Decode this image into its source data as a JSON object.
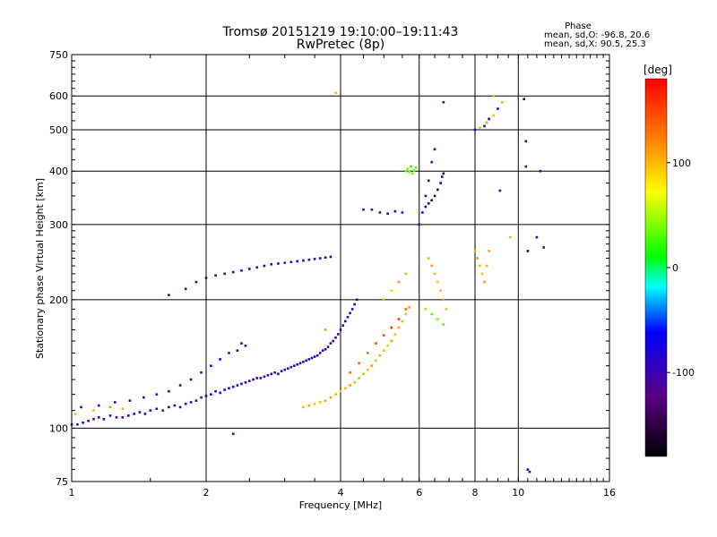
{
  "chart_data": {
    "type": "scatter",
    "title": "Tromsø 20151219 19:10:00–19:11:43",
    "subtitle": "RwPretec (8p)",
    "xlabel": "Frequency [MHz]",
    "ylabel": "Stationary phase Virtual Height [km]",
    "xscale": "log",
    "yscale": "log",
    "xlim": [
      1,
      16
    ],
    "ylim": [
      75,
      750
    ],
    "x_ticks": [
      1,
      2,
      4,
      6,
      8,
      10,
      16
    ],
    "y_ticks": [
      75,
      100,
      200,
      300,
      400,
      500,
      600,
      750
    ],
    "x_grid": [
      2,
      4,
      6,
      8,
      10
    ],
    "y_grid": [
      100,
      200,
      300,
      400,
      500,
      600
    ],
    "grid": true,
    "stats": {
      "heading": "Phase",
      "line_o": "mean, sd,O: -96.8, 20.6",
      "line_x": "mean, sd,X:  90.5, 25.3"
    },
    "colorbar": {
      "label": "[deg]",
      "ticks": [
        100,
        0,
        -100
      ],
      "range": [
        -180,
        180
      ],
      "placement": "right"
    },
    "series": [
      {
        "points": [
          [
            1.0,
            102,
            -100
          ],
          [
            1.03,
            102,
            -110
          ],
          [
            1.06,
            103,
            -95
          ],
          [
            1.09,
            104,
            -100
          ],
          [
            1.12,
            105,
            -120
          ],
          [
            1.15,
            106,
            -90
          ],
          [
            1.18,
            105,
            -100
          ],
          [
            1.22,
            107,
            -110
          ],
          [
            1.26,
            106,
            -95
          ],
          [
            1.3,
            106,
            -105
          ],
          [
            1.34,
            107,
            -100
          ],
          [
            1.38,
            108,
            -115
          ],
          [
            1.42,
            109,
            -90
          ],
          [
            1.46,
            108,
            -100
          ],
          [
            1.5,
            110,
            -105
          ],
          [
            1.55,
            111,
            -100
          ],
          [
            1.6,
            110,
            -120
          ],
          [
            1.65,
            112,
            -95
          ],
          [
            1.7,
            113,
            -100
          ],
          [
            1.75,
            112,
            -110
          ],
          [
            1.8,
            114,
            -100
          ],
          [
            1.85,
            115,
            -90
          ],
          [
            1.9,
            116,
            -100
          ],
          [
            1.95,
            118,
            -110
          ],
          [
            2.0,
            119,
            -100
          ],
          [
            2.05,
            120,
            -95
          ],
          [
            2.1,
            122,
            -105
          ],
          [
            2.15,
            121,
            -100
          ],
          [
            2.2,
            123,
            -110
          ],
          [
            2.25,
            124,
            -100
          ],
          [
            2.3,
            125,
            -95
          ],
          [
            2.35,
            126,
            -100
          ],
          [
            2.4,
            127,
            -105
          ],
          [
            2.45,
            128,
            -100
          ],
          [
            2.5,
            129,
            -115
          ],
          [
            2.55,
            130,
            -100
          ],
          [
            2.6,
            131,
            -95
          ],
          [
            2.65,
            131,
            -100
          ],
          [
            2.7,
            132,
            -105
          ],
          [
            2.75,
            133,
            -100
          ],
          [
            2.8,
            134,
            -110
          ],
          [
            2.85,
            135,
            -100
          ],
          [
            2.9,
            134,
            -95
          ],
          [
            2.95,
            136,
            -100
          ],
          [
            3.0,
            137,
            -105
          ],
          [
            3.05,
            138,
            -100
          ],
          [
            3.1,
            139,
            -110
          ],
          [
            3.15,
            140,
            -100
          ],
          [
            3.2,
            141,
            -95
          ],
          [
            3.25,
            142,
            -100
          ],
          [
            3.3,
            143,
            -105
          ],
          [
            3.35,
            144,
            -100
          ],
          [
            3.4,
            145,
            -90
          ],
          [
            3.45,
            146,
            -100
          ],
          [
            3.5,
            147,
            -110
          ],
          [
            3.55,
            148,
            -100
          ],
          [
            3.6,
            150,
            -95
          ],
          [
            3.65,
            152,
            -100
          ],
          [
            3.7,
            153,
            -105
          ],
          [
            3.75,
            155,
            -100
          ],
          [
            3.8,
            158,
            -110
          ],
          [
            3.85,
            160,
            -100
          ],
          [
            3.9,
            163,
            -95
          ],
          [
            3.95,
            166,
            -100
          ],
          [
            4.0,
            170,
            -100
          ],
          [
            4.05,
            174,
            -105
          ],
          [
            4.1,
            178,
            -100
          ],
          [
            4.15,
            182,
            -110
          ],
          [
            4.2,
            186,
            -100
          ],
          [
            4.25,
            190,
            -95
          ],
          [
            4.3,
            195,
            -100
          ],
          [
            4.35,
            200,
            -105
          ],
          [
            1.05,
            112,
            -100
          ],
          [
            1.15,
            113,
            -95
          ],
          [
            1.25,
            115,
            -100
          ],
          [
            1.35,
            116,
            -105
          ],
          [
            1.45,
            118,
            -100
          ],
          [
            1.55,
            120,
            -110
          ],
          [
            1.65,
            122,
            -100
          ],
          [
            1.75,
            126,
            -95
          ],
          [
            1.85,
            130,
            -100
          ],
          [
            1.95,
            135,
            -105
          ],
          [
            2.05,
            140,
            -100
          ],
          [
            2.15,
            145,
            -110
          ],
          [
            2.25,
            150,
            -100
          ],
          [
            2.35,
            152,
            -95
          ],
          [
            2.45,
            156,
            -100
          ],
          [
            1.65,
            205,
            -110
          ],
          [
            1.8,
            212,
            -100
          ],
          [
            1.9,
            220,
            -105
          ],
          [
            2.0,
            225,
            -100
          ],
          [
            2.1,
            228,
            -110
          ],
          [
            2.2,
            230,
            -95
          ],
          [
            2.3,
            232,
            -100
          ],
          [
            2.4,
            234,
            -105
          ],
          [
            2.5,
            236,
            -100
          ],
          [
            2.6,
            238,
            -110
          ],
          [
            2.7,
            240,
            -100
          ],
          [
            2.8,
            242,
            -95
          ],
          [
            2.9,
            243,
            -100
          ],
          [
            3.0,
            244,
            -105
          ],
          [
            3.1,
            245,
            -100
          ],
          [
            3.2,
            246,
            -110
          ],
          [
            3.3,
            247,
            -100
          ],
          [
            3.4,
            248,
            -95
          ],
          [
            3.5,
            249,
            -100
          ],
          [
            3.6,
            250,
            -105
          ],
          [
            3.7,
            251,
            -100
          ],
          [
            3.8,
            252,
            -110
          ],
          [
            1.02,
            108,
            100
          ],
          [
            1.12,
            110,
            95
          ],
          [
            1.22,
            112,
            110
          ],
          [
            1.3,
            111,
            100
          ],
          [
            3.3,
            112,
            100
          ],
          [
            3.4,
            113,
            110
          ],
          [
            3.5,
            114,
            95
          ],
          [
            3.6,
            115,
            100
          ],
          [
            3.7,
            116,
            105
          ],
          [
            3.8,
            118,
            110
          ],
          [
            3.9,
            120,
            100
          ],
          [
            4.0,
            122,
            95
          ],
          [
            4.1,
            124,
            100
          ],
          [
            4.2,
            126,
            110
          ],
          [
            4.3,
            128,
            100
          ],
          [
            4.4,
            131,
            105
          ],
          [
            4.5,
            134,
            100
          ],
          [
            4.6,
            137,
            95
          ],
          [
            4.7,
            140,
            110
          ],
          [
            4.8,
            144,
            100
          ],
          [
            4.9,
            148,
            105
          ],
          [
            5.0,
            152,
            100
          ],
          [
            5.1,
            156,
            95
          ],
          [
            5.2,
            160,
            110
          ],
          [
            5.3,
            166,
            100
          ],
          [
            5.4,
            172,
            105
          ],
          [
            5.5,
            178,
            100
          ],
          [
            5.6,
            185,
            95
          ],
          [
            5.7,
            192,
            110
          ],
          [
            4.2,
            135,
            130
          ],
          [
            4.4,
            142,
            140
          ],
          [
            4.6,
            150,
            135
          ],
          [
            4.8,
            158,
            150
          ],
          [
            5.0,
            165,
            145
          ],
          [
            5.2,
            172,
            155
          ],
          [
            5.4,
            180,
            150
          ],
          [
            5.6,
            190,
            140
          ],
          [
            5.0,
            200,
            100
          ],
          [
            5.2,
            210,
            90
          ],
          [
            5.4,
            220,
            110
          ],
          [
            5.6,
            230,
            100
          ],
          [
            4.5,
            325,
            -100
          ],
          [
            4.7,
            325,
            -110
          ],
          [
            4.9,
            320,
            -100
          ],
          [
            5.1,
            318,
            -95
          ],
          [
            5.3,
            322,
            -105
          ],
          [
            5.5,
            320,
            -100
          ],
          [
            5.6,
            400,
            30
          ],
          [
            5.65,
            405,
            40
          ],
          [
            5.7,
            398,
            35
          ],
          [
            5.75,
            410,
            20
          ],
          [
            5.8,
            395,
            30
          ],
          [
            5.85,
            402,
            35
          ],
          [
            5.9,
            408,
            25
          ],
          [
            6.2,
            330,
            -150
          ],
          [
            6.3,
            336,
            -140
          ],
          [
            6.4,
            342,
            -160
          ],
          [
            6.5,
            350,
            -145
          ],
          [
            6.6,
            362,
            -155
          ],
          [
            6.7,
            375,
            -150
          ],
          [
            6.75,
            388,
            -145
          ],
          [
            6.8,
            395,
            -150
          ],
          [
            6.0,
            300,
            -100
          ],
          [
            6.1,
            320,
            -90
          ],
          [
            6.2,
            350,
            -100
          ],
          [
            6.3,
            380,
            -110
          ],
          [
            6.4,
            420,
            -100
          ],
          [
            6.5,
            450,
            -95
          ],
          [
            6.3,
            250,
            100
          ],
          [
            6.4,
            240,
            110
          ],
          [
            6.5,
            230,
            100
          ],
          [
            6.6,
            220,
            95
          ],
          [
            6.7,
            210,
            100
          ],
          [
            6.8,
            200,
            110
          ],
          [
            6.9,
            190,
            100
          ],
          [
            6.2,
            190,
            40
          ],
          [
            6.4,
            185,
            30
          ],
          [
            6.6,
            180,
            35
          ],
          [
            6.8,
            175,
            25
          ],
          [
            8.0,
            260,
            100
          ],
          [
            8.1,
            250,
            110
          ],
          [
            8.2,
            240,
            100
          ],
          [
            8.3,
            230,
            95
          ],
          [
            8.4,
            220,
            110
          ],
          [
            8.5,
            240,
            100
          ],
          [
            8.6,
            260,
            105
          ],
          [
            8.0,
            500,
            -100
          ],
          [
            8.2,
            505,
            100
          ],
          [
            8.4,
            510,
            -90
          ],
          [
            8.5,
            520,
            110
          ],
          [
            8.6,
            530,
            -100
          ],
          [
            8.8,
            540,
            100
          ],
          [
            9.0,
            560,
            -95
          ],
          [
            9.2,
            580,
            105
          ],
          [
            3.9,
            610,
            100
          ],
          [
            6.8,
            580,
            -100
          ],
          [
            8.8,
            600,
            100
          ],
          [
            10.3,
            590,
            -100
          ],
          [
            10.4,
            470,
            -110
          ],
          [
            9.1,
            360,
            -100
          ],
          [
            10.4,
            410,
            -120
          ],
          [
            11.2,
            400,
            -130
          ],
          [
            10.5,
            260,
            -150
          ],
          [
            11.4,
            265,
            -140
          ],
          [
            11.0,
            280,
            -100
          ],
          [
            9.6,
            280,
            100
          ],
          [
            10.5,
            80,
            -110
          ],
          [
            10.6,
            79,
            -100
          ],
          [
            2.3,
            97,
            -110
          ],
          [
            3.7,
            170,
            110
          ],
          [
            2.4,
            158,
            -100
          ]
        ]
      }
    ]
  }
}
